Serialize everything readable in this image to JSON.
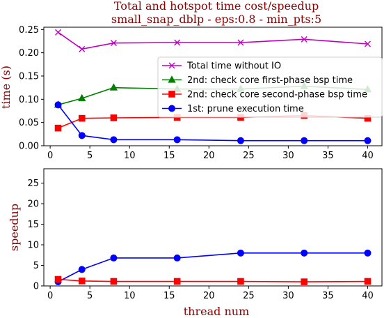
{
  "title": "Total and hotspot time cost/speedup",
  "subtitle": "small_snap_dblp - eps:0.8 - min_pts:5",
  "chart_data": [
    {
      "type": "line",
      "ylabel": "time (s)",
      "xlabel": "",
      "xlim": [
        -0.8,
        41.8
      ],
      "ylim": [
        0,
        0.255
      ],
      "xticks": [
        0,
        5,
        10,
        15,
        20,
        25,
        30,
        35,
        40
      ],
      "yticks": [
        0.0,
        0.05,
        0.1,
        0.15,
        0.2,
        0.25
      ],
      "ytick_labels": [
        "0.00",
        "0.05",
        "0.10",
        "0.15",
        "0.20",
        "0.25"
      ],
      "legend_position": "center-right",
      "x": [
        1,
        4,
        8,
        16,
        24,
        32,
        40
      ],
      "series": [
        {
          "name": "Total time without IO",
          "color": "#bf00bf",
          "marker": "x",
          "values": [
            0.244,
            0.208,
            0.221,
            0.222,
            0.222,
            0.229,
            0.219
          ]
        },
        {
          "name": "2nd: check core first-phase bsp time",
          "color": "#008000",
          "marker": "triangle",
          "values": [
            0.088,
            0.102,
            0.125,
            0.122,
            0.122,
            0.128,
            0.121
          ]
        },
        {
          "name": "2nd: check core second-phase bsp time",
          "color": "#ff0000",
          "marker": "square",
          "values": [
            0.038,
            0.059,
            0.06,
            0.061,
            0.061,
            0.065,
            0.059
          ]
        },
        {
          "name": "1st: prune execution time",
          "color": "#0000ff",
          "marker": "circle",
          "values": [
            0.088,
            0.022,
            0.013,
            0.013,
            0.011,
            0.011,
            0.011
          ]
        }
      ]
    },
    {
      "type": "line",
      "ylabel": "speedup",
      "xlabel": "thread num",
      "xlim": [
        -0.8,
        41.8
      ],
      "ylim": [
        0,
        28.5
      ],
      "xticks": [
        0,
        5,
        10,
        15,
        20,
        25,
        30,
        35,
        40
      ],
      "yticks": [
        0,
        5,
        10,
        15,
        20,
        25
      ],
      "ytick_labels": [
        "0",
        "5",
        "10",
        "15",
        "20",
        "25"
      ],
      "x": [
        1,
        4,
        8,
        16,
        24,
        32,
        40
      ],
      "series": [
        {
          "color": "#0000ff",
          "marker": "circle",
          "values": [
            1.0,
            4.0,
            6.8,
            6.8,
            8.0,
            8.0,
            8.0
          ]
        },
        {
          "color": "#ff0000",
          "marker": "square",
          "values": [
            1.6,
            1.2,
            1.1,
            1.1,
            1.1,
            1.0,
            1.1
          ]
        }
      ]
    }
  ]
}
